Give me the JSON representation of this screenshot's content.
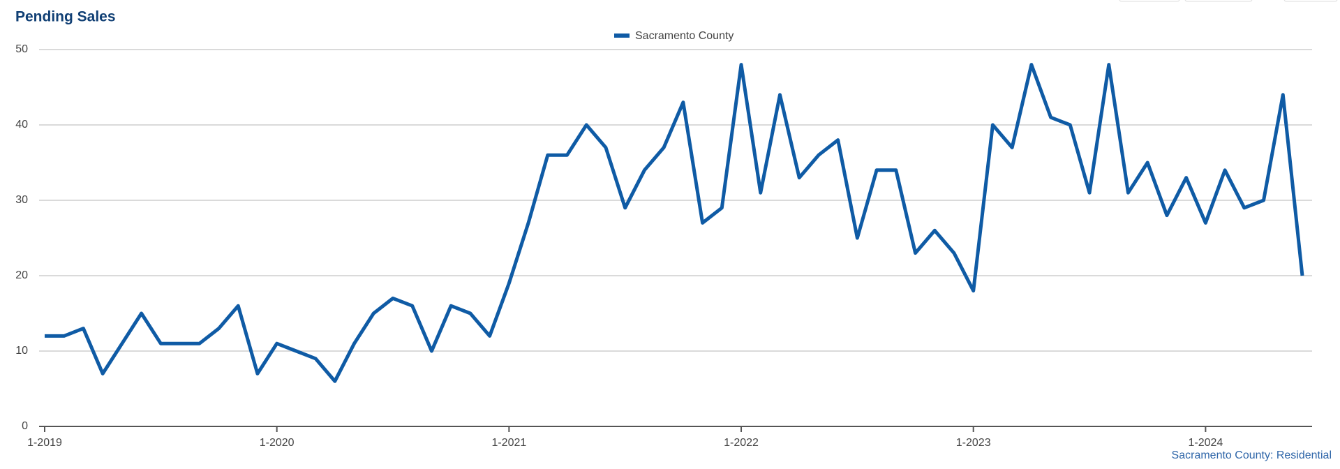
{
  "chart_data": {
    "type": "line",
    "title": "Pending Sales",
    "categories": [
      "1-2019",
      null,
      null,
      null,
      null,
      null,
      null,
      null,
      null,
      null,
      null,
      null,
      "1-2020",
      null,
      null,
      null,
      null,
      null,
      null,
      null,
      null,
      null,
      null,
      null,
      "1-2021",
      null,
      null,
      null,
      null,
      null,
      null,
      null,
      null,
      null,
      null,
      null,
      "1-2022",
      null,
      null,
      null,
      null,
      null,
      null,
      null,
      null,
      null,
      null,
      null,
      "1-2023",
      null,
      null,
      null,
      null,
      null,
      null,
      null,
      null,
      null,
      null,
      null,
      "1-2024",
      null,
      null,
      null,
      null,
      null
    ],
    "series": [
      {
        "name": "Sacramento County",
        "color": "#0f5ba5",
        "values": [
          12,
          12,
          13,
          7,
          11,
          15,
          11,
          11,
          11,
          13,
          16,
          7,
          11,
          10,
          9,
          6,
          11,
          15,
          17,
          16,
          10,
          16,
          15,
          12,
          19,
          27,
          36,
          36,
          40,
          37,
          29,
          34,
          37,
          43,
          27,
          29,
          48,
          31,
          44,
          33,
          36,
          38,
          25,
          34,
          34,
          23,
          26,
          23,
          18,
          40,
          37,
          48,
          41,
          40,
          31,
          48,
          31,
          35,
          28,
          33,
          27,
          34,
          29,
          30,
          44,
          20
        ]
      }
    ],
    "ylim": [
      0,
      50
    ],
    "yticks": [
      0,
      10,
      20,
      30,
      40,
      50
    ],
    "grid": true,
    "legend": "top",
    "footnote": "Sacramento County: Residential"
  }
}
